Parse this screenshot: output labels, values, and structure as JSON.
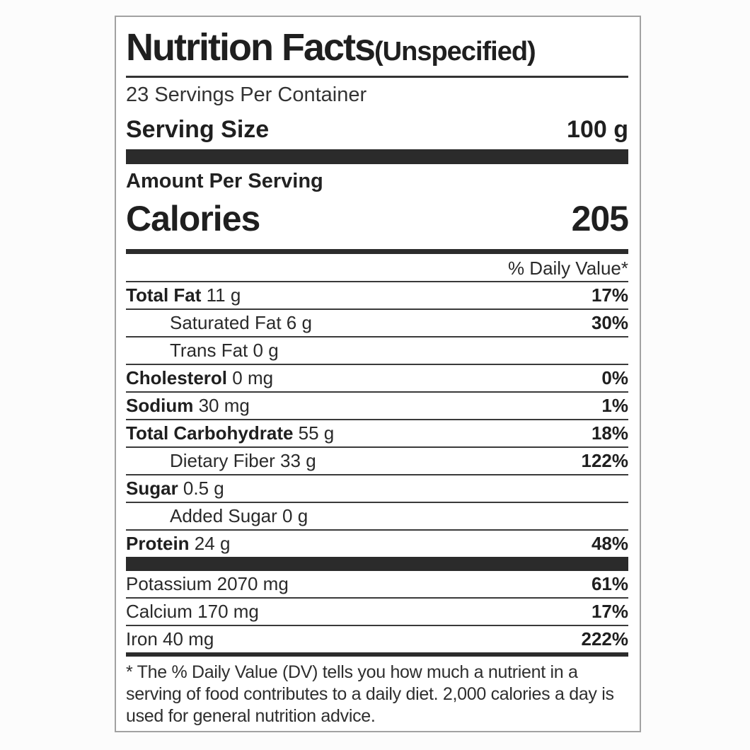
{
  "label": {
    "title": "Nutrition Facts",
    "title_suffix": "(Unspecified)",
    "servings_per_container": "23 Servings Per Container",
    "serving_size_label": "Serving Size",
    "serving_size_value": "100 g",
    "amount_per_serving": "Amount Per Serving",
    "calories_label": "Calories",
    "calories_value": "205",
    "daily_value_header": "% Daily Value*",
    "nutrients": [
      {
        "name": "Total Fat",
        "amount": "11 g",
        "dv": "17%",
        "bold": true,
        "indent": 0
      },
      {
        "name": "Saturated Fat",
        "amount": "6 g",
        "dv": "30%",
        "bold": false,
        "indent": 1
      },
      {
        "name": "Trans Fat",
        "amount": "0 g",
        "dv": "",
        "bold": false,
        "indent": 1
      },
      {
        "name": "Cholesterol",
        "amount": "0 mg",
        "dv": "0%",
        "bold": true,
        "indent": 0
      },
      {
        "name": "Sodium",
        "amount": "30 mg",
        "dv": "1%",
        "bold": true,
        "indent": 0
      },
      {
        "name": "Total Carbohydrate",
        "amount": "55 g",
        "dv": "18%",
        "bold": true,
        "indent": 0
      },
      {
        "name": "Dietary Fiber",
        "amount": "33 g",
        "dv": "122%",
        "bold": false,
        "indent": 1
      },
      {
        "name": "Sugar",
        "amount": "0.5 g",
        "dv": "",
        "bold": true,
        "indent": 0
      },
      {
        "name": "Added Sugar",
        "amount": "0 g",
        "dv": "",
        "bold": false,
        "indent": 1
      },
      {
        "name": "Protein",
        "amount": "24 g",
        "dv": "48%",
        "bold": true,
        "indent": 0
      }
    ],
    "minerals": [
      {
        "name": "Potassium",
        "amount": "2070 mg",
        "dv": "61%",
        "bold": false,
        "indent": 0
      },
      {
        "name": "Calcium",
        "amount": "170 mg",
        "dv": "17%",
        "bold": false,
        "indent": 0
      },
      {
        "name": "Iron",
        "amount": "40 mg",
        "dv": "222%",
        "bold": false,
        "indent": 0
      }
    ],
    "footnote": "* The % Daily Value (DV) tells you how much a nutrient in a serving of food contributes to a daily diet. 2,000 calories a day is used for general nutrition advice."
  }
}
